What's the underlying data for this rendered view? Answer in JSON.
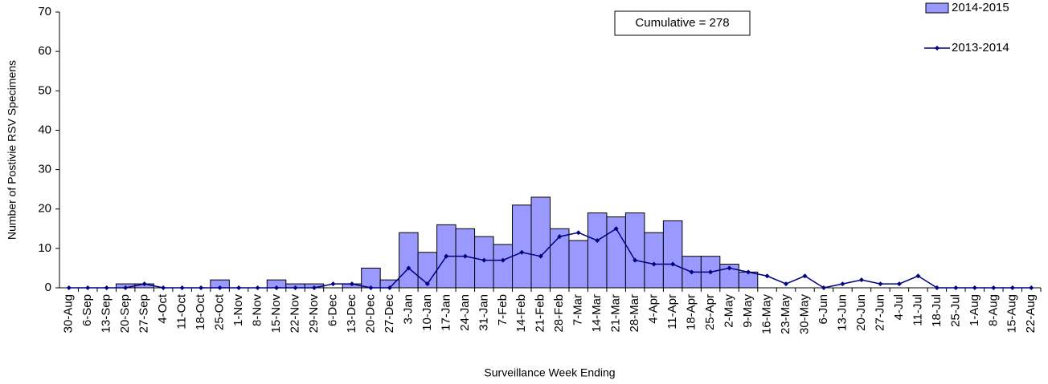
{
  "chart_data": {
    "type": "combo",
    "x_label": "Surveillance Week Ending",
    "y_label": "Number of Postivie RSV Specimens",
    "annotation": "Cumulative = 278",
    "categories": [
      "30-Aug",
      "6-Sep",
      "13-Sep",
      "20-Sep",
      "27-Sep",
      "4-Oct",
      "11-Oct",
      "18-Oct",
      "25-Oct",
      "1-Nov",
      "8-Nov",
      "15-Nov",
      "22-Nov",
      "29-Nov",
      "6-Dec",
      "13-Dec",
      "20-Dec",
      "27-Dec",
      "3-Jan",
      "10-Jan",
      "17-Jan",
      "24-Jan",
      "31-Jan",
      "7-Feb",
      "14-Feb",
      "21-Feb",
      "28-Feb",
      "7-Mar",
      "14-Mar",
      "21-Mar",
      "28-Mar",
      "4-Apr",
      "11-Apr",
      "18-Apr",
      "25-Apr",
      "2-May",
      "9-May",
      "16-May",
      "23-May",
      "30-May",
      "6-Jun",
      "13-Jun",
      "20-Jun",
      "27-Jun",
      "4-Jul",
      "11-Jul",
      "18-Jul",
      "25-Jul",
      "1-Aug",
      "8-Aug",
      "15-Aug",
      "22-Aug"
    ],
    "series": [
      {
        "name": "2014-2015",
        "type": "bar",
        "color": "#9999ff",
        "values": [
          0,
          0,
          0,
          1,
          1,
          0,
          0,
          0,
          2,
          0,
          0,
          2,
          1,
          1,
          0,
          1,
          5,
          2,
          14,
          9,
          16,
          15,
          13,
          11,
          21,
          23,
          15,
          12,
          19,
          18,
          19,
          14,
          17,
          8,
          8,
          6,
          4,
          null,
          null,
          null,
          null,
          null,
          null,
          null,
          null,
          null,
          null,
          null,
          null,
          null,
          null,
          null
        ]
      },
      {
        "name": "2013-2014",
        "type": "line",
        "color": "#000080",
        "values": [
          0,
          0,
          0,
          0,
          1,
          0,
          0,
          0,
          0,
          0,
          0,
          0,
          0,
          0,
          1,
          1,
          0,
          0,
          5,
          1,
          8,
          8,
          7,
          7,
          9,
          8,
          13,
          14,
          12,
          15,
          7,
          6,
          6,
          4,
          4,
          5,
          4,
          3,
          1,
          3,
          0,
          1,
          2,
          1,
          1,
          3,
          0,
          0,
          0,
          0,
          0,
          0
        ]
      }
    ],
    "ylim": [
      0,
      70
    ],
    "yticks": [
      0,
      10,
      20,
      30,
      40,
      50,
      60,
      70
    ]
  }
}
